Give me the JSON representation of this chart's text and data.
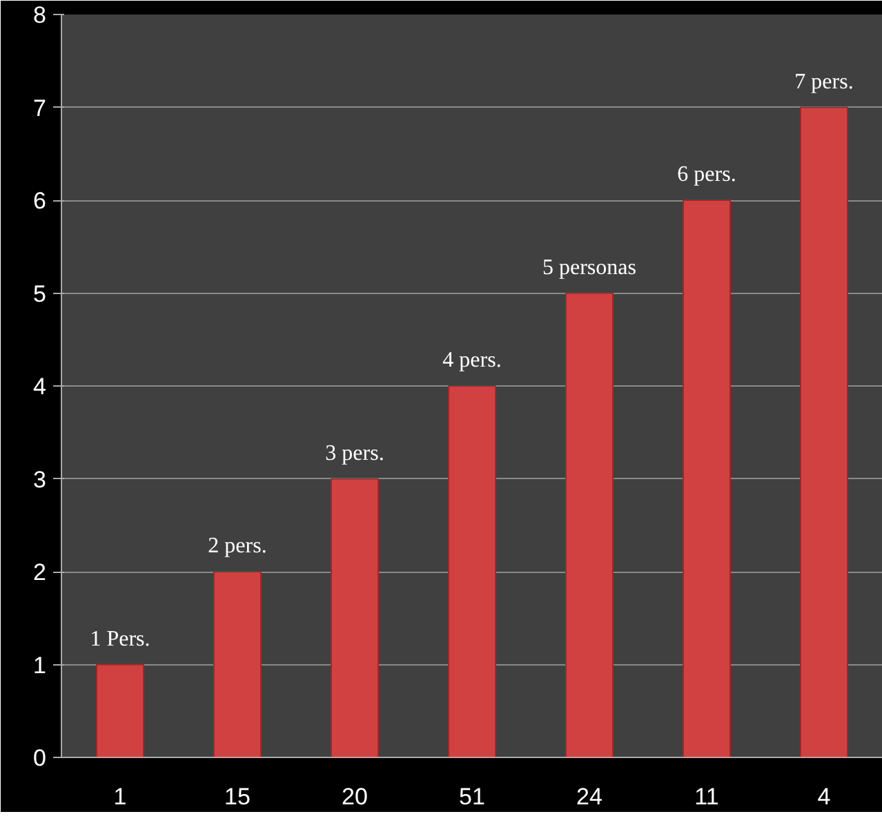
{
  "chart_data": {
    "type": "bar",
    "categories": [
      "1",
      "15",
      "20",
      "51",
      "24",
      "11",
      "4"
    ],
    "values": [
      1,
      2,
      3,
      4,
      5,
      6,
      7
    ],
    "value_labels": [
      "1 Pers.",
      "2 pers.",
      "3 pers.",
      "4 pers.",
      "5 personas",
      "6 pers.",
      "7 pers."
    ],
    "color": "#d24141",
    "ylim": [
      0,
      8
    ],
    "yticks": [
      0,
      1,
      2,
      3,
      4,
      5,
      6,
      7,
      8
    ],
    "grid": "y"
  }
}
